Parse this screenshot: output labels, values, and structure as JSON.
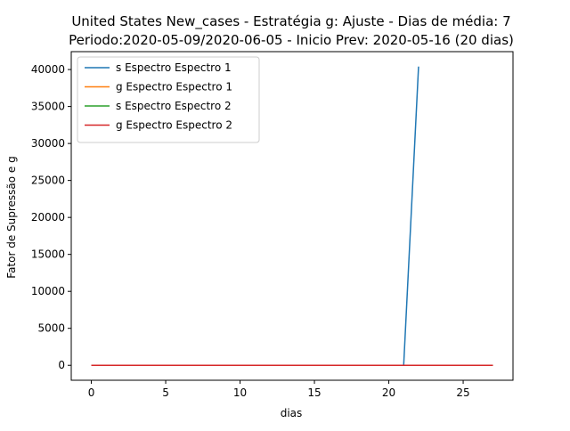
{
  "chart_data": {
    "type": "line",
    "title_line1": "United States New_cases - Estratégia g: Ajuste - Dias de média: 7",
    "title_line2": "Periodo:2020-05-09/2020-06-05 - Inicio Prev: 2020-05-16 (20 dias)",
    "xlabel": "dias",
    "ylabel": "Fator de Supressão e g",
    "xlim": [
      -1.35,
      28.35
    ],
    "ylim": [
      -2020,
      42420
    ],
    "xticks": [
      0,
      5,
      10,
      15,
      20,
      25
    ],
    "yticks": [
      0,
      5000,
      10000,
      15000,
      20000,
      25000,
      30000,
      35000,
      40000
    ],
    "grid": false,
    "legend_position": "upper-left",
    "series": [
      {
        "name": "s Espectro Espectro 1",
        "color": "#1f77b4",
        "x": [
          0,
          1,
          2,
          3,
          4,
          5,
          6,
          7,
          8,
          9,
          10,
          11,
          12,
          13,
          14,
          15,
          16,
          17,
          18,
          19,
          20,
          21,
          22
        ],
        "y": [
          0,
          0,
          0,
          0,
          0,
          0,
          0,
          0,
          0,
          0,
          0,
          0,
          0,
          0,
          0,
          0,
          0,
          0,
          0,
          0,
          0,
          0,
          40400
        ]
      },
      {
        "name": "g Espectro Espectro 1",
        "color": "#ff7f0e",
        "x": [
          0,
          27
        ],
        "y": [
          0,
          0
        ]
      },
      {
        "name": "s Espectro Espectro 2",
        "color": "#2ca02c",
        "x": [
          0,
          27
        ],
        "y": [
          0,
          0
        ]
      },
      {
        "name": "g Espectro Espectro 2",
        "color": "#d62728",
        "x": [
          0,
          27
        ],
        "y": [
          0,
          0
        ]
      }
    ]
  }
}
